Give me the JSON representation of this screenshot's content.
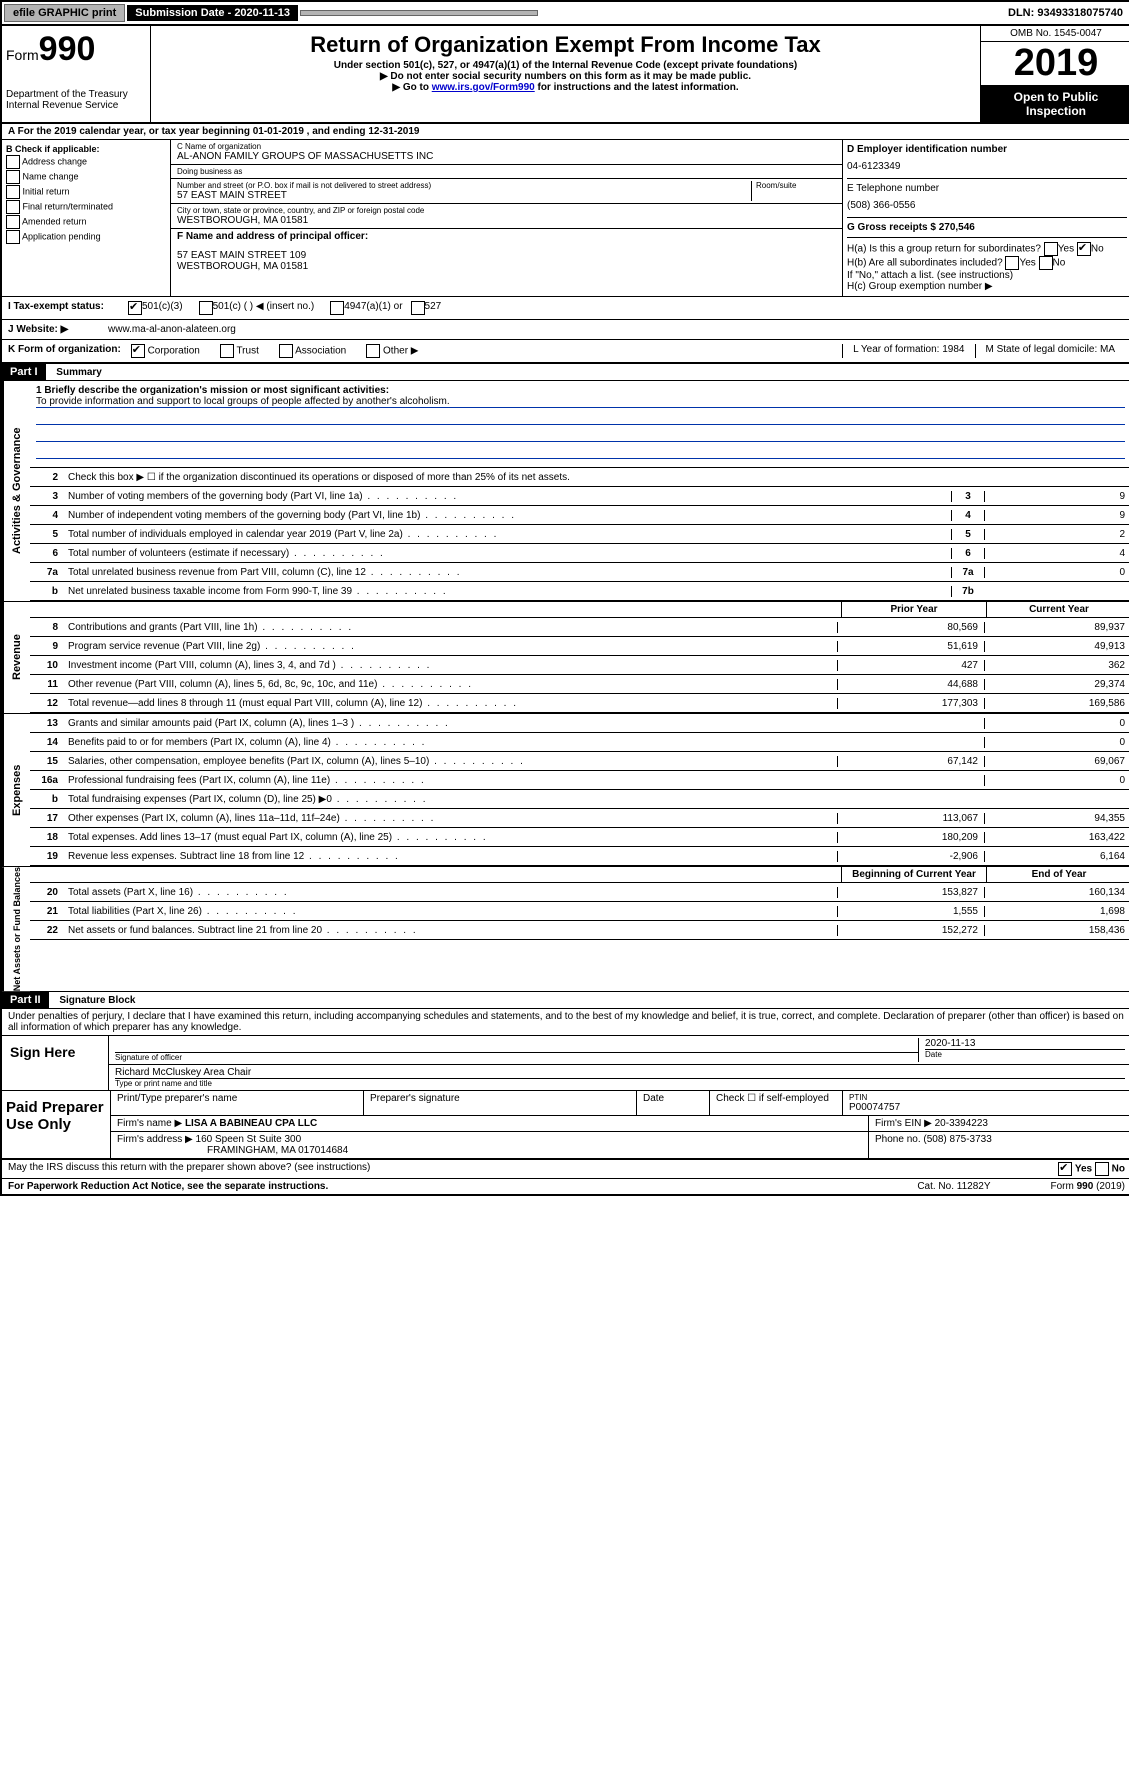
{
  "topbar": {
    "efile": "efile GRAPHIC print",
    "subdate_label": "Submission Date - 2020-11-13",
    "dln": "DLN: 93493318075740"
  },
  "header": {
    "form_small": "Form",
    "form_big": "990",
    "title": "Return of Organization Exempt From Income Tax",
    "subtitle": "Under section 501(c), 527, or 4947(a)(1) of the Internal Revenue Code (except private foundations)",
    "note1": "▶ Do not enter social security numbers on this form as it may be made public.",
    "note2_pre": "▶ Go to ",
    "note2_link": "www.irs.gov/Form990",
    "note2_post": " for instructions and the latest information.",
    "dept": "Department of the Treasury\nInternal Revenue Service",
    "omb": "OMB No. 1545-0047",
    "year": "2019",
    "open": "Open to Public Inspection"
  },
  "sectionA": "A For the 2019 calendar year, or tax year beginning 01-01-2019  , and ending 12-31-2019",
  "colB": {
    "title": "B Check if applicable:",
    "items": [
      "Address change",
      "Name change",
      "Initial return",
      "Final return/terminated",
      "Amended return",
      "Application pending"
    ]
  },
  "colC": {
    "name_label": "C Name of organization",
    "name": "AL-ANON FAMILY GROUPS OF MASSACHUSETTS INC",
    "dba_label": "Doing business as",
    "street_label": "Number and street (or P.O. box if mail is not delivered to street address)",
    "street": "57 EAST MAIN STREET",
    "room_label": "Room/suite",
    "city_label": "City or town, state or province, country, and ZIP or foreign postal code",
    "city": "WESTBOROUGH, MA  01581",
    "f_label": "F Name and address of principal officer:",
    "f_addr1": "57 EAST MAIN STREET 109",
    "f_addr2": "WESTBOROUGH, MA  01581"
  },
  "colD": {
    "ein_label": "D Employer identification number",
    "ein": "04-6123349",
    "tel_label": "E Telephone number",
    "tel": "(508) 366-0556",
    "g_label": "G Gross receipts $ 270,546"
  },
  "hblock": {
    "ha": "H(a)  Is this a group return for subordinates?",
    "hb": "H(b)  Are all subordinates included?",
    "hb_note": "If \"No,\" attach a list. (see instructions)",
    "hc": "H(c)  Group exemption number ▶",
    "yes": "Yes",
    "no": "No"
  },
  "status": {
    "label": "I  Tax-exempt status:",
    "opt1": "501(c)(3)",
    "opt2": "501(c) (  ) ◀ (insert no.)",
    "opt3": "4947(a)(1) or",
    "opt4": "527"
  },
  "website": {
    "label": "J  Website: ▶",
    "url": "www.ma-al-anon-alateen.org"
  },
  "korg": {
    "k": "K Form of organization:",
    "corp": "Corporation",
    "trust": "Trust",
    "assoc": "Association",
    "other": "Other ▶",
    "l": "L Year of formation: 1984",
    "m": "M State of legal domicile: MA"
  },
  "partI": {
    "header": "Part I",
    "title": "Summary",
    "mission_label": "1  Briefly describe the organization's mission or most significant activities:",
    "mission": "To provide information and support to local groups of people affected by another's alcoholism.",
    "line2": "Check this box ▶ ☐  if the organization discontinued its operations or disposed of more than 25% of its net assets.",
    "prior_year": "Prior Year",
    "current_year": "Current Year",
    "beg_year": "Beginning of Current Year",
    "end_year": "End of Year"
  },
  "lines_gov": [
    {
      "n": "3",
      "d": "Number of voting members of the governing body (Part VI, line 1a)",
      "box": "3",
      "v": "9"
    },
    {
      "n": "4",
      "d": "Number of independent voting members of the governing body (Part VI, line 1b)",
      "box": "4",
      "v": "9"
    },
    {
      "n": "5",
      "d": "Total number of individuals employed in calendar year 2019 (Part V, line 2a)",
      "box": "5",
      "v": "2"
    },
    {
      "n": "6",
      "d": "Total number of volunteers (estimate if necessary)",
      "box": "6",
      "v": "4"
    },
    {
      "n": "7a",
      "d": "Total unrelated business revenue from Part VIII, column (C), line 12",
      "box": "7a",
      "v": "0"
    },
    {
      "n": "b",
      "d": "Net unrelated business taxable income from Form 990-T, line 39",
      "box": "7b",
      "v": ""
    }
  ],
  "lines_rev": [
    {
      "n": "8",
      "d": "Contributions and grants (Part VIII, line 1h)",
      "p": "80,569",
      "c": "89,937"
    },
    {
      "n": "9",
      "d": "Program service revenue (Part VIII, line 2g)",
      "p": "51,619",
      "c": "49,913"
    },
    {
      "n": "10",
      "d": "Investment income (Part VIII, column (A), lines 3, 4, and 7d )",
      "p": "427",
      "c": "362"
    },
    {
      "n": "11",
      "d": "Other revenue (Part VIII, column (A), lines 5, 6d, 8c, 9c, 10c, and 11e)",
      "p": "44,688",
      "c": "29,374"
    },
    {
      "n": "12",
      "d": "Total revenue—add lines 8 through 11 (must equal Part VIII, column (A), line 12)",
      "p": "177,303",
      "c": "169,586"
    }
  ],
  "lines_exp": [
    {
      "n": "13",
      "d": "Grants and similar amounts paid (Part IX, column (A), lines 1–3 )",
      "p": "",
      "c": "0"
    },
    {
      "n": "14",
      "d": "Benefits paid to or for members (Part IX, column (A), line 4)",
      "p": "",
      "c": "0"
    },
    {
      "n": "15",
      "d": "Salaries, other compensation, employee benefits (Part IX, column (A), lines 5–10)",
      "p": "67,142",
      "c": "69,067"
    },
    {
      "n": "16a",
      "d": "Professional fundraising fees (Part IX, column (A), line 11e)",
      "p": "",
      "c": "0"
    },
    {
      "n": "b",
      "d": "Total fundraising expenses (Part IX, column (D), line 25) ▶0",
      "p": "",
      "c": ""
    },
    {
      "n": "17",
      "d": "Other expenses (Part IX, column (A), lines 11a–11d, 11f–24e)",
      "p": "113,067",
      "c": "94,355"
    },
    {
      "n": "18",
      "d": "Total expenses. Add lines 13–17 (must equal Part IX, column (A), line 25)",
      "p": "180,209",
      "c": "163,422"
    },
    {
      "n": "19",
      "d": "Revenue less expenses. Subtract line 18 from line 12",
      "p": "-2,906",
      "c": "6,164"
    }
  ],
  "lines_net": [
    {
      "n": "20",
      "d": "Total assets (Part X, line 16)",
      "p": "153,827",
      "c": "160,134"
    },
    {
      "n": "21",
      "d": "Total liabilities (Part X, line 26)",
      "p": "1,555",
      "c": "1,698"
    },
    {
      "n": "22",
      "d": "Net assets or fund balances. Subtract line 21 from line 20",
      "p": "152,272",
      "c": "158,436"
    }
  ],
  "partII": {
    "header": "Part II",
    "title": "Signature Block",
    "perjury": "Under penalties of perjury, I declare that I have examined this return, including accompanying schedules and statements, and to the best of my knowledge and belief, it is true, correct, and complete. Declaration of preparer (other than officer) is based on all information of which preparer has any knowledge."
  },
  "sign": {
    "label": "Sign Here",
    "sig_officer": "Signature of officer",
    "date": "2020-11-13",
    "date_label": "Date",
    "name": "Richard McCluskey  Area Chair",
    "name_label": "Type or print name and title"
  },
  "paid": {
    "label": "Paid Preparer Use Only",
    "h1": "Print/Type preparer's name",
    "h2": "Preparer's signature",
    "h3": "Date",
    "h4": "Check ☐ if self-employed",
    "h5": "PTIN",
    "ptin": "P00074757",
    "firm_name_label": "Firm's name    ▶",
    "firm_name": "LISA A BABINEAU CPA LLC",
    "firm_ein_label": "Firm's EIN ▶",
    "firm_ein": "20-3394223",
    "firm_addr_label": "Firm's address ▶",
    "firm_addr1": "160 Speen St Suite 300",
    "firm_addr2": "FRAMINGHAM, MA  017014684",
    "phone_label": "Phone no.",
    "phone": "(508) 875-3733"
  },
  "footer": {
    "irs_q": "May the IRS discuss this return with the preparer shown above? (see instructions)",
    "pra": "For Paperwork Reduction Act Notice, see the separate instructions.",
    "cat": "Cat. No. 11282Y",
    "form": "Form 990 (2019)"
  }
}
